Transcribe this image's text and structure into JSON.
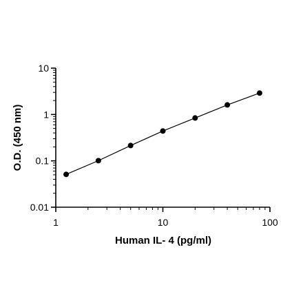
{
  "chart_data": {
    "type": "scatter",
    "x_label": "Human IL- 4 (pg/ml)",
    "y_label": "O.D. (450 nm)",
    "x": [
      1.25,
      2.5,
      5,
      10,
      20,
      40,
      80
    ],
    "series": [
      {
        "color": "#000000",
        "values": [
          0.051,
          0.101,
          0.214,
          0.44,
          0.84,
          1.61,
          2.9
        ]
      }
    ],
    "xlim": [
      1,
      100
    ],
    "xticks": [
      1,
      10,
      100
    ],
    "ylim": [
      0.01,
      10
    ],
    "yticks": [
      0.01,
      0.1,
      1,
      10
    ],
    "x_scale": "log",
    "y_scale": "log",
    "grid": false
  }
}
